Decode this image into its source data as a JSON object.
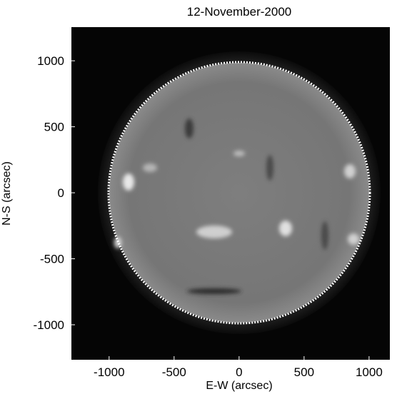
{
  "chart_data": {
    "type": "image",
    "title": "12-November-2000",
    "xlabel": "E-W (arcsec)",
    "ylabel": "N-S (arcsec)",
    "xlim": [
      -1290,
      1160
    ],
    "ylim": [
      -1265,
      1255
    ],
    "xticks": [
      -1000,
      -500,
      0,
      500,
      1000
    ],
    "yticks": [
      -1000,
      -500,
      0,
      500,
      1000
    ]
  }
}
